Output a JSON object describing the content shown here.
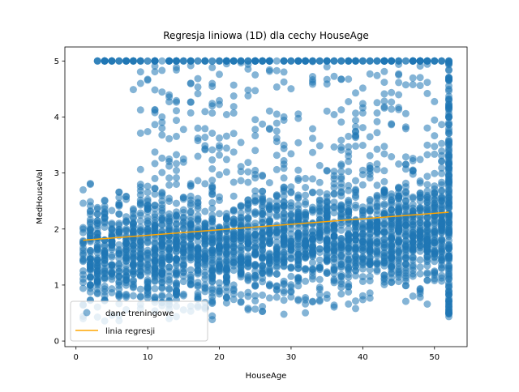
{
  "chart_data": {
    "type": "scatter",
    "title": "Regresja liniowa (1D) dla cechy HouseAge",
    "xlabel": "HouseAge",
    "ylabel": "MedHouseVal",
    "xlim": [
      -1.55,
      54.55
    ],
    "ylim": [
      -0.1,
      5.25
    ],
    "xticks": [
      0,
      10,
      20,
      30,
      40,
      50
    ],
    "yticks": [
      0,
      1,
      2,
      3,
      4,
      5
    ],
    "grid": false,
    "legend_position": "lower-left",
    "series": [
      {
        "name": "dane treningowe",
        "kind": "scatter",
        "color": "#1f77b4",
        "alpha": 0.55,
        "x_range": [
          1,
          52
        ],
        "y_range": [
          0.15,
          5.0
        ],
        "note_values": "dense cloud of thousands of points; centre of mass around y=1.5-2.5; cap line at y=5.0 across all ages"
      },
      {
        "name": "linia regresji",
        "kind": "line",
        "color": "#ffa500",
        "points": [
          [
            1,
            1.8
          ],
          [
            52,
            2.3
          ]
        ]
      }
    ]
  }
}
